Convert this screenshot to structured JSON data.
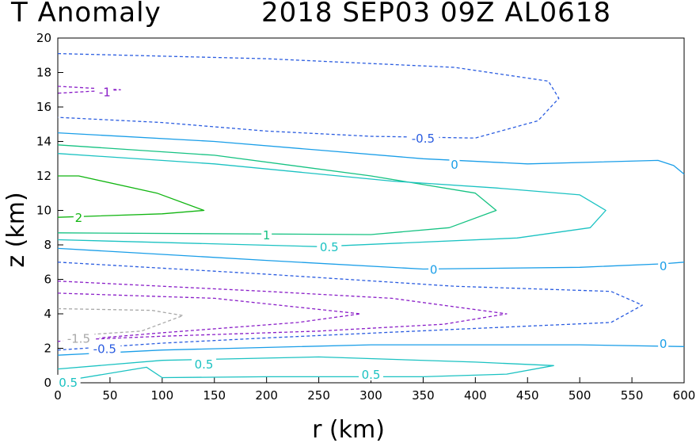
{
  "title": {
    "left": "T Anomaly",
    "right": "2018 SEP03 09Z   AL0618"
  },
  "chart_data": {
    "type": "contour",
    "title": "T Anomaly   2018 SEP03 09Z   AL0618",
    "xlabel": "r (km)",
    "ylabel": "z (km)",
    "xlim": [
      0,
      600
    ],
    "ylim": [
      0,
      20
    ],
    "xticks": [
      0,
      50,
      100,
      150,
      200,
      250,
      300,
      350,
      400,
      450,
      500,
      550,
      600
    ],
    "yticks": [
      0,
      2,
      4,
      6,
      8,
      10,
      12,
      14,
      16,
      18,
      20
    ],
    "colors": {
      "2": "#11b511",
      "1": "#15c282",
      "0.5": "#1bc2c2",
      "0": "#1a9ee8",
      "-0.5": "#2a5ce0",
      "-1": "#8a1ec8",
      "-1.5": "#a8a8a8"
    },
    "contours": [
      {
        "level": "-0.5",
        "dashed": true,
        "points": [
          [
            0,
            19.1
          ],
          [
            200,
            18.8
          ],
          [
            380,
            18.3
          ],
          [
            470,
            17.5
          ],
          [
            480,
            16.5
          ],
          [
            460,
            15.2
          ],
          [
            400,
            14.2
          ],
          [
            300,
            14.3
          ],
          [
            200,
            14.6
          ],
          [
            100,
            15.1
          ],
          [
            0,
            15.4
          ]
        ]
      },
      {
        "level": "-1",
        "dashed": true,
        "points": [
          [
            0,
            17.2
          ],
          [
            30,
            17.1
          ],
          [
            60,
            17.0
          ],
          [
            30,
            16.9
          ],
          [
            0,
            16.8
          ]
        ]
      },
      {
        "level": "0",
        "dashed": false,
        "points": [
          [
            0,
            14.5
          ],
          [
            150,
            14.0
          ],
          [
            250,
            13.5
          ],
          [
            350,
            13.0
          ],
          [
            450,
            12.7
          ],
          [
            575,
            12.9
          ],
          [
            590,
            12.6
          ],
          [
            600,
            12.1
          ]
        ]
      },
      {
        "level": "1",
        "dashed": false,
        "points": [
          [
            0,
            13.8
          ],
          [
            150,
            13.2
          ],
          [
            300,
            12.0
          ],
          [
            400,
            11.0
          ],
          [
            420,
            10.0
          ],
          [
            375,
            9.0
          ],
          [
            300,
            8.6
          ],
          [
            0,
            8.7
          ]
        ]
      },
      {
        "level": "0.5",
        "dashed": false,
        "points": [
          [
            0,
            13.3
          ],
          [
            150,
            12.7
          ],
          [
            320,
            11.7
          ],
          [
            420,
            11.3
          ],
          [
            500,
            10.9
          ],
          [
            525,
            10.0
          ],
          [
            510,
            9.0
          ],
          [
            440,
            8.4
          ],
          [
            250,
            7.9
          ],
          [
            0,
            8.3
          ]
        ]
      },
      {
        "level": "2",
        "dashed": false,
        "points": [
          [
            0,
            12.0
          ],
          [
            20,
            12.0
          ],
          [
            95,
            11.0
          ],
          [
            140,
            10.0
          ],
          [
            100,
            9.8
          ],
          [
            0,
            9.6
          ]
        ]
      },
      {
        "level": "0",
        "dashed": false,
        "points": [
          [
            0,
            7.8
          ],
          [
            200,
            7.1
          ],
          [
            350,
            6.6
          ],
          [
            500,
            6.7
          ],
          [
            580,
            6.9
          ],
          [
            600,
            7.0
          ]
        ]
      },
      {
        "level": "-0.5",
        "dashed": true,
        "points": [
          [
            0,
            7.0
          ],
          [
            200,
            6.3
          ],
          [
            380,
            5.6
          ],
          [
            530,
            5.3
          ],
          [
            560,
            4.5
          ],
          [
            530,
            3.5
          ],
          [
            380,
            3.1
          ],
          [
            200,
            2.6
          ],
          [
            100,
            2.3
          ],
          [
            0,
            1.9
          ]
        ]
      },
      {
        "level": "-1",
        "dashed": true,
        "points": [
          [
            0,
            5.9
          ],
          [
            200,
            5.3
          ],
          [
            320,
            4.9
          ],
          [
            430,
            4.0
          ],
          [
            370,
            3.4
          ],
          [
            250,
            3.0
          ],
          [
            100,
            2.7
          ],
          [
            20,
            2.5
          ],
          [
            0,
            2.4
          ]
        ]
      },
      {
        "level": "-1",
        "dashed": true,
        "points": [
          [
            0,
            5.2
          ],
          [
            150,
            4.9
          ],
          [
            290,
            4.0
          ],
          [
            230,
            3.5
          ],
          [
            100,
            2.9
          ],
          [
            40,
            2.6
          ]
        ]
      },
      {
        "level": "-1.5",
        "dashed": true,
        "points": [
          [
            0,
            4.3
          ],
          [
            90,
            4.2
          ],
          [
            120,
            3.9
          ],
          [
            80,
            3.0
          ],
          [
            30,
            2.8
          ],
          [
            20,
            2.5
          ]
        ]
      },
      {
        "level": "0",
        "dashed": false,
        "points": [
          [
            0,
            1.6
          ],
          [
            100,
            1.9
          ],
          [
            300,
            2.2
          ],
          [
            500,
            2.2
          ],
          [
            600,
            2.1
          ]
        ]
      },
      {
        "level": "0.5",
        "dashed": false,
        "points": [
          [
            0,
            0.8
          ],
          [
            100,
            1.3
          ],
          [
            250,
            1.5
          ],
          [
            400,
            1.2
          ],
          [
            475,
            1.0
          ],
          [
            430,
            0.5
          ],
          [
            350,
            0.35
          ],
          [
            200,
            0.35
          ],
          [
            100,
            0.3
          ],
          [
            85,
            0.9
          ],
          [
            0,
            0.05
          ]
        ]
      }
    ],
    "labels": [
      {
        "text": "-0.5",
        "x": 350,
        "y": 14.2
      },
      {
        "text": "-1",
        "x": 45,
        "y": 16.9
      },
      {
        "text": "0",
        "x": 380,
        "y": 12.7
      },
      {
        "text": "2",
        "x": 20,
        "y": 9.6
      },
      {
        "text": "1",
        "x": 200,
        "y": 8.6
      },
      {
        "text": "0.5",
        "x": 260,
        "y": 7.9
      },
      {
        "text": "0",
        "x": 360,
        "y": 6.6
      },
      {
        "text": "0",
        "x": 580,
        "y": 6.8
      },
      {
        "text": "-0.5",
        "x": 45,
        "y": 2.0
      },
      {
        "text": "-1.5",
        "x": 20,
        "y": 2.6
      },
      {
        "text": "0",
        "x": 580,
        "y": 2.3
      },
      {
        "text": "0.5",
        "x": 140,
        "y": 1.1
      },
      {
        "text": "0.5",
        "x": 300,
        "y": 0.5
      },
      {
        "text": "0.5",
        "x": 10,
        "y": 0.05
      }
    ]
  }
}
